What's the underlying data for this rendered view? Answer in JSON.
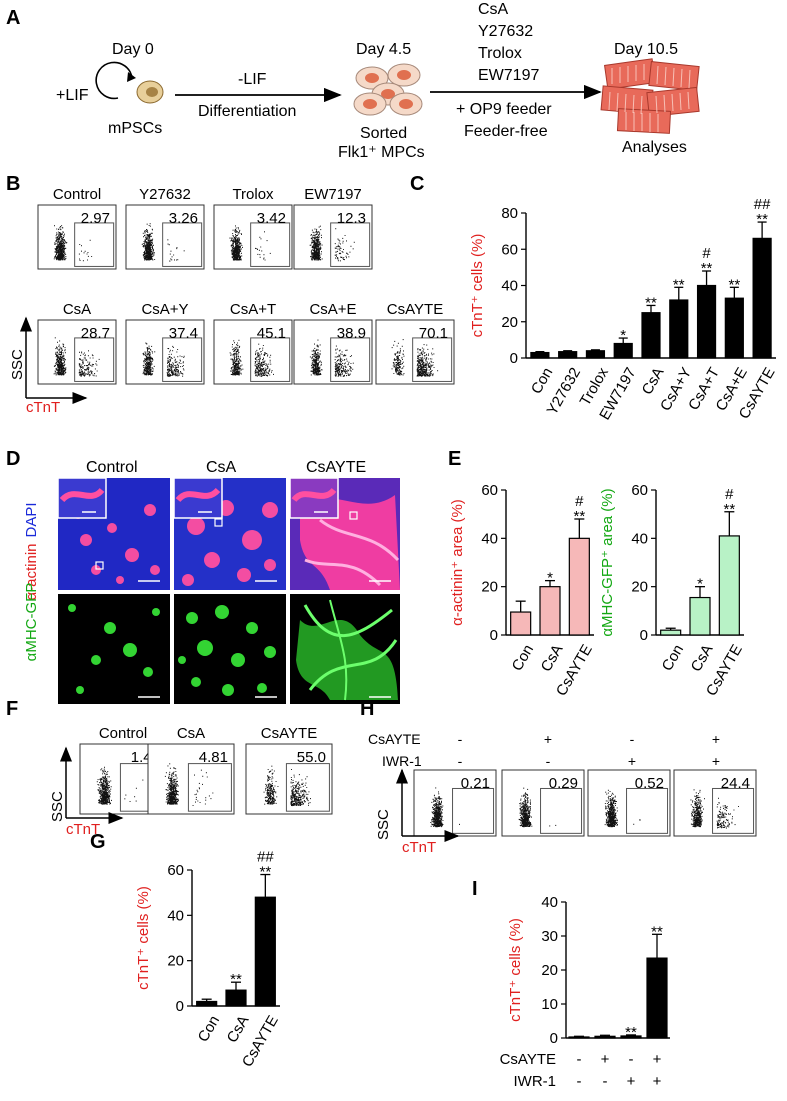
{
  "panels": {
    "A": "A",
    "B": "B",
    "C": "C",
    "D": "D",
    "E": "E",
    "F": "F",
    "G": "G",
    "H": "H",
    "I": "I"
  },
  "panel_a": {
    "day0": "Day 0",
    "lif": "+LIF",
    "mpscs": "mPSCs",
    "minus_lif": "-LIF",
    "differentiation": "Differentiation",
    "day45": "Day 4.5",
    "sorted": "Sorted",
    "mpcs": "Flk1⁺ MPCs",
    "compounds": [
      "CsA",
      "Y27632",
      "Trolox",
      "EW7197"
    ],
    "op9": "+ OP9 feeder",
    "feeder_free": "Feeder-free",
    "day105": "Day 10.5",
    "analyses": "Analyses"
  },
  "flow_b": {
    "ssc": "SSC",
    "ctnt": "cTnT",
    "plots": [
      {
        "label": "Control",
        "value": "2.97"
      },
      {
        "label": "Y27632",
        "value": "3.26"
      },
      {
        "label": "Trolox",
        "value": "3.42"
      },
      {
        "label": "EW7197",
        "value": "12.3"
      },
      {
        "label": "CsA",
        "value": "28.7"
      },
      {
        "label": "CsA+Y",
        "value": "37.4"
      },
      {
        "label": "CsA+T",
        "value": "45.1"
      },
      {
        "label": "CsA+E",
        "value": "38.9"
      },
      {
        "label": "CsAYTE",
        "value": "70.1"
      }
    ]
  },
  "panel_d": {
    "cols": [
      "Control",
      "CsA",
      "CsAYTE"
    ],
    "row1_label": "α-actinin",
    "row1_label2": "DAPI",
    "row2_label": "αMHC-GFP"
  },
  "flow_f": {
    "ssc": "SSC",
    "ctnt": "cTnT",
    "plots": [
      {
        "label": "Control",
        "value": "1.43"
      },
      {
        "label": "CsA",
        "value": "4.81"
      },
      {
        "label": "CsAYTE",
        "value": "55.0"
      }
    ]
  },
  "flow_h": {
    "ssc": "SSC",
    "ctnt": "cTnT",
    "row_labels": [
      "CsAYTE",
      "IWR-1"
    ],
    "signs_csayte": [
      "-",
      "+",
      "-",
      "+"
    ],
    "signs_iwr": [
      "-",
      "-",
      "+",
      "+"
    ],
    "values": [
      "0.21",
      "0.29",
      "0.52",
      "24.4"
    ]
  },
  "chart_data": [
    {
      "type": "bar",
      "id": "C",
      "ylabel": "cTnT⁺ cells (%)",
      "categories": [
        "Con",
        "Y27632",
        "Trolox",
        "EW7197",
        "CsA",
        "CsA+Y",
        "CsA+T",
        "CsA+E",
        "CsAYTE"
      ],
      "values": [
        3,
        3.5,
        4,
        8,
        25,
        32,
        40,
        33,
        66
      ],
      "errors": [
        0.5,
        0.5,
        0.5,
        3,
        4,
        7,
        8,
        6,
        9
      ],
      "marks": [
        "",
        "",
        "",
        "*",
        "**",
        "**",
        "#\n**",
        "**",
        "##\n**"
      ],
      "ylim": [
        0,
        80
      ],
      "yticks": [
        0,
        20,
        40,
        60,
        80
      ],
      "color": "#000000"
    },
    {
      "type": "bar",
      "id": "E1",
      "ylabel": "α-actinin⁺ area (%)",
      "categories": [
        "Con",
        "CsA",
        "CsAYTE"
      ],
      "values": [
        9.5,
        20,
        40
      ],
      "errors": [
        4.5,
        2.5,
        8
      ],
      "marks": [
        "",
        "*",
        "#\n**"
      ],
      "ylim": [
        0,
        60
      ],
      "yticks": [
        0,
        20,
        40,
        60
      ],
      "color": "#f6b8b8"
    },
    {
      "type": "bar",
      "id": "E2",
      "ylabel": "αMHC-GFP⁺ area (%)",
      "categories": [
        "Con",
        "CsA",
        "CsAYTE"
      ],
      "values": [
        2,
        15.5,
        41
      ],
      "errors": [
        0.8,
        4.5,
        10
      ],
      "marks": [
        "",
        "*",
        "#\n**"
      ],
      "ylim": [
        0,
        60
      ],
      "yticks": [
        0,
        20,
        40,
        60
      ],
      "color": "#b8f2c6"
    },
    {
      "type": "bar",
      "id": "G",
      "ylabel": "cTnT⁺ cells (%)",
      "categories": [
        "Con",
        "CsA",
        "CsAYTE"
      ],
      "values": [
        2,
        7,
        48
      ],
      "errors": [
        1,
        3.5,
        10
      ],
      "marks": [
        "",
        "**",
        "##\n**"
      ],
      "ylim": [
        0,
        60
      ],
      "yticks": [
        0,
        20,
        40,
        60
      ],
      "color": "#000000"
    },
    {
      "type": "bar",
      "id": "I",
      "ylabel": "cTnT⁺ cells (%)",
      "categories": [
        "",
        "",
        "",
        ""
      ],
      "values": [
        0.3,
        0.5,
        0.6,
        23.5
      ],
      "errors": [
        0.2,
        0.3,
        0.3,
        7
      ],
      "marks": [
        "",
        "",
        "**",
        "**"
      ],
      "ylim": [
        0,
        40
      ],
      "yticks": [
        0,
        10,
        20,
        30,
        40
      ],
      "color": "#000000",
      "row_labels": [
        "CsAYTE",
        "IWR-1"
      ],
      "signs_csayte": [
        "-",
        "+",
        "-",
        "+"
      ],
      "signs_iwr": [
        "-",
        "-",
        "+",
        "+"
      ]
    }
  ]
}
